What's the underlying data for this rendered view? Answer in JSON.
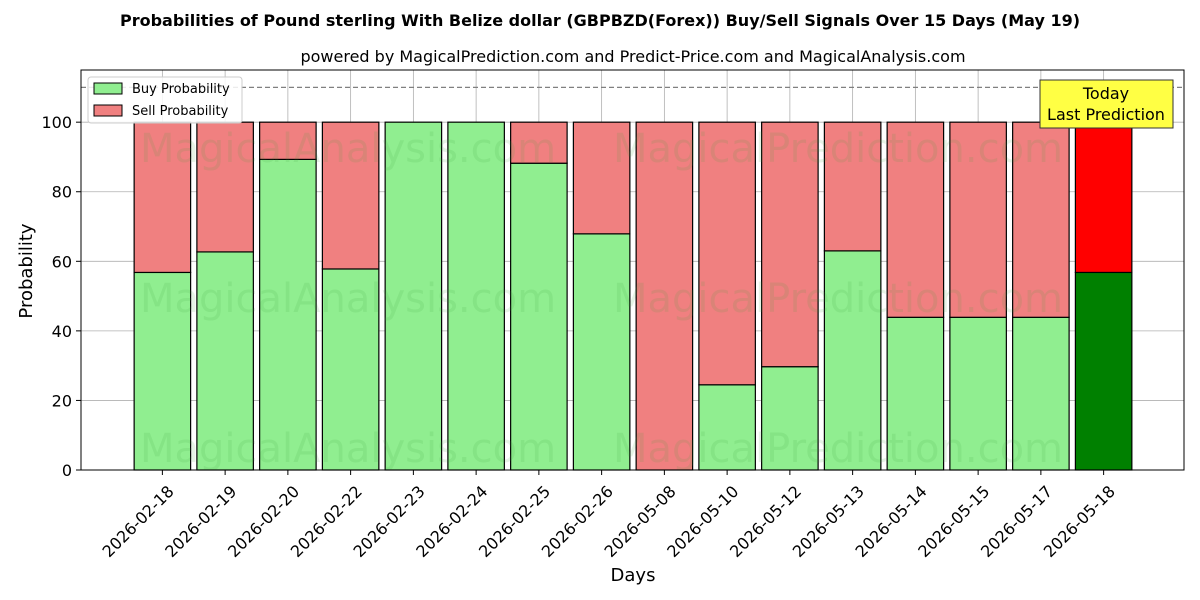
{
  "chart_data": {
    "type": "bar",
    "stacked": true,
    "title": "Probabilities of Pound sterling With Belize dollar (GBPBZD(Forex)) Buy/Sell Signals Over 15 Days (May 19)",
    "subtitle": "powered by MagicalPrediction.com and Predict-Price.com and MagicalAnalysis.com",
    "xlabel": "Days",
    "ylabel": "Probability",
    "ylim": [
      0,
      115
    ],
    "yticks": [
      0,
      20,
      40,
      60,
      80,
      100
    ],
    "grid": true,
    "legend_position": "top-left",
    "reference_line": 110,
    "categories": [
      "2026-02-18",
      "2026-02-19",
      "2026-02-20",
      "2026-02-22",
      "2026-02-23",
      "2026-02-24",
      "2026-02-25",
      "2026-02-26",
      "2026-05-08",
      "2026-05-10",
      "2026-05-12",
      "2026-05-13",
      "2026-05-14",
      "2026-05-15",
      "2026-05-17",
      "2026-05-18"
    ],
    "series": [
      {
        "name": "Buy Probability",
        "color": "#90ee90",
        "values": [
          56.8,
          62.7,
          89.3,
          57.8,
          100,
          100,
          88.2,
          67.9,
          0,
          24.5,
          29.7,
          63.0,
          43.9,
          43.9,
          43.9,
          56.8
        ]
      },
      {
        "name": "Sell Probability",
        "color": "#f08080",
        "values": [
          43.2,
          37.3,
          10.7,
          42.2,
          0,
          0,
          11.8,
          32.1,
          100,
          75.5,
          70.3,
          37.0,
          56.1,
          56.1,
          56.1,
          43.2
        ]
      }
    ],
    "highlight": {
      "index": 15,
      "buy_color": "#008000",
      "sell_color": "#ff0000"
    },
    "annotation": {
      "lines": [
        "Today",
        "Last Prediction"
      ],
      "background": "#ffff44"
    },
    "watermarks": [
      "MagicalAnalysis.com",
      "MagicalPrediction.com"
    ]
  }
}
